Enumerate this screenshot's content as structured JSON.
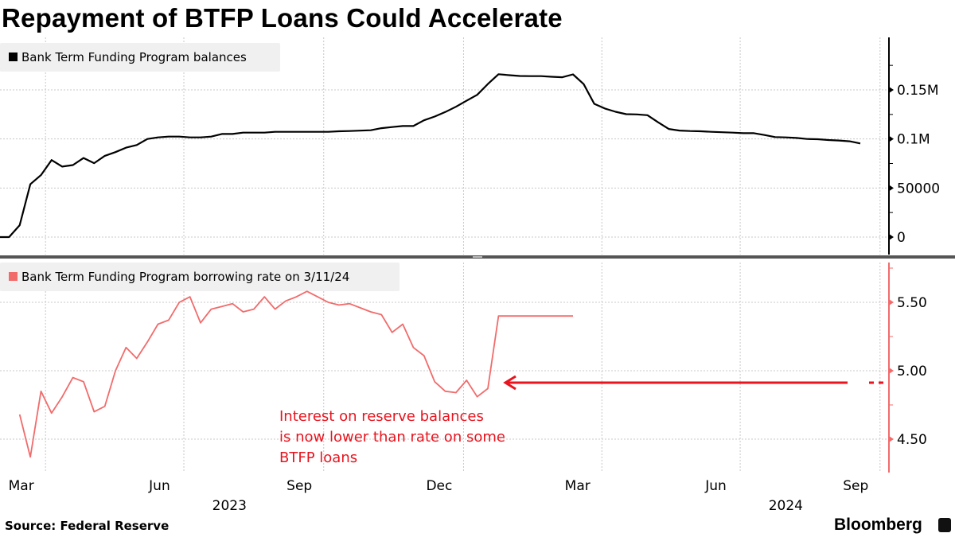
{
  "title": "Repayment of BTFP Loans Could Accelerate",
  "source": "Source: Federal Reserve",
  "brand": "Bloomberg",
  "chart_data": [
    {
      "type": "line",
      "legend": "Bank Term Funding Program balances",
      "legend_position": "top-left",
      "color": "#000000",
      "y_axis_side": "right",
      "yticks": [
        0,
        50000,
        100000,
        150000
      ],
      "ytick_labels": [
        "0",
        "50000",
        "0.1M",
        "0.15M"
      ],
      "ylim": [
        -20000,
        200000
      ],
      "grid": true,
      "x": [
        "2023-03-01",
        "2023-03-08",
        "2023-03-15",
        "2023-03-22",
        "2023-03-29",
        "2023-04-05",
        "2023-04-12",
        "2023-04-19",
        "2023-04-26",
        "2023-05-03",
        "2023-05-10",
        "2023-05-17",
        "2023-05-24",
        "2023-05-31",
        "2023-06-07",
        "2023-06-14",
        "2023-06-21",
        "2023-06-28",
        "2023-07-05",
        "2023-07-12",
        "2023-07-19",
        "2023-07-26",
        "2023-08-02",
        "2023-08-09",
        "2023-08-16",
        "2023-08-23",
        "2023-08-30",
        "2023-09-06",
        "2023-09-13",
        "2023-09-20",
        "2023-09-27",
        "2023-10-04",
        "2023-10-11",
        "2023-10-18",
        "2023-10-25",
        "2023-11-01",
        "2023-11-08",
        "2023-11-15",
        "2023-11-22",
        "2023-11-29",
        "2023-12-06",
        "2023-12-13",
        "2023-12-20",
        "2023-12-27",
        "2024-01-03",
        "2024-01-10",
        "2024-01-17",
        "2024-01-24",
        "2024-01-31",
        "2024-02-07",
        "2024-02-14",
        "2024-02-21",
        "2024-02-28",
        "2024-03-06",
        "2024-03-13",
        "2024-03-20",
        "2024-03-27",
        "2024-04-03",
        "2024-04-10",
        "2024-04-17",
        "2024-04-24",
        "2024-05-01",
        "2024-05-08",
        "2024-05-15",
        "2024-05-22",
        "2024-05-29",
        "2024-06-05",
        "2024-06-12",
        "2024-06-19",
        "2024-06-26",
        "2024-07-03",
        "2024-07-10",
        "2024-07-17",
        "2024-07-24",
        "2024-07-31",
        "2024-08-07",
        "2024-08-14",
        "2024-08-21",
        "2024-08-28",
        "2024-09-04",
        "2024-09-11",
        "2024-09-18"
      ],
      "values": [
        0,
        0,
        12100,
        53800,
        63200,
        78500,
        71800,
        73400,
        80600,
        75300,
        82800,
        86600,
        91100,
        93800,
        100000,
        101600,
        102400,
        102400,
        101600,
        101600,
        102400,
        105100,
        105100,
        106500,
        106500,
        106500,
        107300,
        107300,
        107300,
        107300,
        107300,
        107300,
        107800,
        108100,
        108500,
        108900,
        111000,
        112100,
        113200,
        113200,
        119000,
        122800,
        127500,
        132800,
        139000,
        145000,
        156000,
        166000,
        165000,
        164200,
        164000,
        164000,
        163400,
        162900,
        165800,
        155900,
        135800,
        131000,
        127700,
        125300,
        125000,
        124200,
        117000,
        110200,
        108600,
        108100,
        107800,
        107300,
        106900,
        106500,
        105900,
        105900,
        104000,
        101900,
        101600,
        101000,
        100000,
        99700,
        98900,
        98400,
        97600,
        95400
      ]
    },
    {
      "type": "line",
      "legend": "Bank Term Funding Program borrowing rate on 3/11/24",
      "legend_position": "top-left",
      "color": "#f26b6b",
      "y_axis_side": "right",
      "yticks": [
        4.5,
        5.0,
        5.5
      ],
      "ytick_labels": [
        "4.50",
        "5.00",
        "5.50"
      ],
      "ylim": [
        4.25,
        5.82
      ],
      "grid": true,
      "x": [
        "2023-03-15",
        "2023-03-22",
        "2023-03-29",
        "2023-04-05",
        "2023-04-12",
        "2023-04-19",
        "2023-04-26",
        "2023-05-03",
        "2023-05-10",
        "2023-05-17",
        "2023-05-24",
        "2023-05-31",
        "2023-06-07",
        "2023-06-14",
        "2023-06-21",
        "2023-06-28",
        "2023-07-05",
        "2023-07-12",
        "2023-07-19",
        "2023-07-26",
        "2023-08-02",
        "2023-08-09",
        "2023-08-16",
        "2023-08-23",
        "2023-08-30",
        "2023-09-06",
        "2023-09-13",
        "2023-09-20",
        "2023-09-27",
        "2023-10-04",
        "2023-10-11",
        "2023-10-18",
        "2023-10-25",
        "2023-11-01",
        "2023-11-08",
        "2023-11-15",
        "2023-11-22",
        "2023-11-29",
        "2023-12-06",
        "2023-12-13",
        "2023-12-20",
        "2023-12-27",
        "2024-01-03",
        "2024-01-10",
        "2024-01-17",
        "2024-01-24",
        "2024-01-31",
        "2024-02-07",
        "2024-02-14",
        "2024-02-21",
        "2024-02-28",
        "2024-03-06",
        "2024-03-13"
      ],
      "values": [
        4.68,
        4.37,
        4.85,
        4.69,
        4.81,
        4.95,
        4.92,
        4.7,
        4.74,
        5.0,
        5.17,
        5.09,
        5.21,
        5.34,
        5.37,
        5.5,
        5.54,
        5.35,
        5.45,
        5.47,
        5.49,
        5.43,
        5.45,
        5.54,
        5.45,
        5.51,
        5.54,
        5.58,
        5.54,
        5.5,
        5.48,
        5.49,
        5.46,
        5.43,
        5.41,
        5.28,
        5.34,
        5.17,
        5.11,
        4.92,
        4.85,
        4.84,
        4.93,
        4.81,
        4.87,
        5.4,
        5.4,
        5.4,
        5.4,
        5.4,
        5.4,
        5.4,
        5.4
      ],
      "reference_line": {
        "value": 4.9,
        "color": "#e8141e",
        "style": "arrow"
      },
      "annotation": [
        "Interest on reserve balances",
        "is now lower than rate on some",
        "BTFP loans"
      ]
    }
  ],
  "x_axis": {
    "month_labels": [
      {
        "label": "Mar",
        "date": "2023-03-16"
      },
      {
        "label": "Jun",
        "date": "2023-06-15"
      },
      {
        "label": "Sep",
        "date": "2023-09-15"
      },
      {
        "label": "Dec",
        "date": "2023-12-16"
      },
      {
        "label": "Mar",
        "date": "2024-03-16"
      },
      {
        "label": "Jun",
        "date": "2024-06-15"
      },
      {
        "label": "Sep",
        "date": "2024-09-15"
      }
    ],
    "year_labels": [
      {
        "label": "2023",
        "date": "2023-07-31"
      },
      {
        "label": "2024",
        "date": "2024-07-31"
      }
    ],
    "gridlines": [
      "2023-04-01",
      "2023-07-01",
      "2023-10-01",
      "2024-01-01",
      "2024-04-01",
      "2024-07-01",
      "2024-10-01"
    ]
  }
}
